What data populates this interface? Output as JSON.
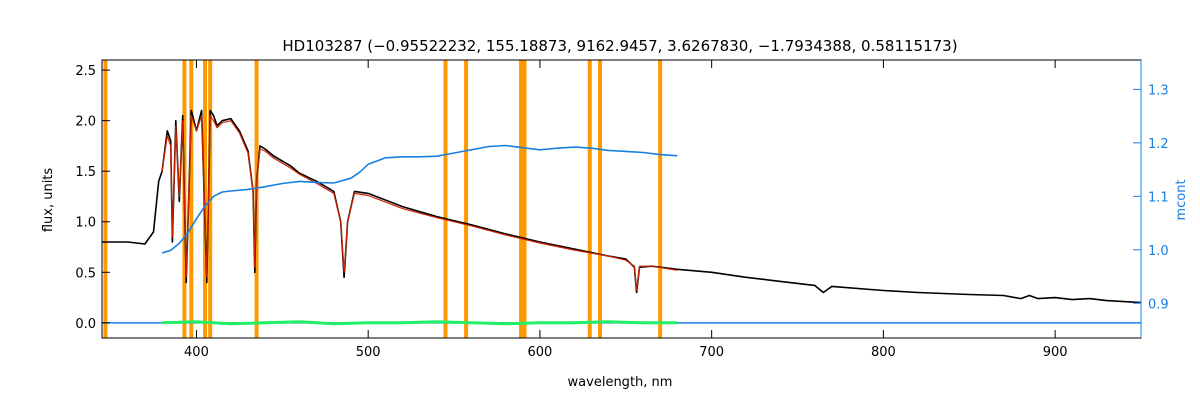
{
  "chart_data": {
    "type": "line",
    "title": "HD103287   (−0.95522232, 155.18873, 9162.9457, 3.6267830, −1.7934388, 0.58115173)",
    "xlabel": "wavelength, nm",
    "ylabel": "flux, units",
    "y2label": "mcont",
    "xlim": [
      345,
      950
    ],
    "ylim": [
      -0.15,
      2.6
    ],
    "y2lim": [
      0.835,
      1.355
    ],
    "x_ticks": [
      400,
      500,
      600,
      700,
      800,
      900
    ],
    "y_ticks": [
      0.0,
      0.5,
      1.0,
      1.5,
      2.0,
      2.5
    ],
    "y2_ticks": [
      0.9,
      1.0,
      1.1,
      1.2,
      1.3
    ],
    "x_tick_labels": [
      "400",
      "500",
      "600",
      "700",
      "800",
      "900"
    ],
    "y_tick_labels": [
      "0.0",
      "0.5",
      "1.0",
      "1.5",
      "2.0",
      "2.5"
    ],
    "y2_tick_labels": [
      "0.9",
      "1.0",
      "1.1",
      "1.2",
      "1.3"
    ],
    "grid": false,
    "colors": {
      "observed": "#000000",
      "model": "#cc2200",
      "continuum": "#1a80e0",
      "residual": "#22ee66",
      "masks": "#ff9900",
      "zero_line": "#1a80e0",
      "right_axis": "#1a80e0"
    },
    "series": [
      {
        "x": [
          345,
          360,
          370,
          375,
          378,
          380,
          383,
          385,
          386,
          388,
          390,
          392,
          394,
          397,
          400,
          403,
          406,
          408,
          410,
          412,
          415,
          420,
          425,
          430,
          433,
          434,
          435,
          437,
          440,
          445,
          450,
          455,
          460,
          470,
          480,
          484,
          486,
          488,
          492,
          500,
          520,
          540,
          560,
          580,
          600,
          620,
          640,
          650,
          655,
          656.3,
          658,
          665,
          680,
          700,
          720,
          740,
          760,
          765,
          770,
          800,
          820,
          850,
          870,
          880,
          885,
          890,
          900,
          910,
          920,
          930,
          940,
          950
        ],
        "y": [
          0.8,
          0.8,
          0.78,
          0.9,
          1.4,
          1.5,
          1.9,
          1.8,
          0.8,
          2.0,
          1.2,
          2.05,
          0.4,
          2.1,
          1.9,
          2.1,
          0.4,
          2.1,
          2.05,
          1.95,
          2.0,
          2.02,
          1.9,
          1.7,
          1.3,
          0.5,
          1.4,
          1.75,
          1.72,
          1.65,
          1.6,
          1.55,
          1.48,
          1.4,
          1.3,
          1.0,
          0.45,
          1.0,
          1.3,
          1.28,
          1.15,
          1.05,
          0.97,
          0.88,
          0.8,
          0.73,
          0.66,
          0.63,
          0.55,
          0.3,
          0.55,
          0.56,
          0.53,
          0.5,
          0.45,
          0.41,
          0.37,
          0.3,
          0.36,
          0.32,
          0.3,
          0.28,
          0.27,
          0.24,
          0.27,
          0.24,
          0.25,
          0.23,
          0.24,
          0.22,
          0.21,
          0.2
        ]
      },
      {
        "x": [
          380,
          383,
          385,
          386,
          388,
          390,
          392,
          394,
          397,
          400,
          403,
          406,
          408,
          410,
          412,
          415,
          420,
          425,
          430,
          433,
          434,
          435,
          437,
          440,
          445,
          450,
          455,
          460,
          470,
          480,
          484,
          486,
          488,
          492,
          500,
          520,
          540,
          560,
          580,
          600,
          620,
          640,
          650,
          655,
          656.3,
          658,
          665,
          680
        ],
        "y": [
          1.5,
          1.85,
          1.75,
          0.85,
          1.95,
          1.25,
          2.0,
          0.45,
          2.05,
          1.9,
          2.05,
          0.45,
          2.05,
          2.0,
          1.93,
          1.98,
          2.0,
          1.88,
          1.68,
          1.3,
          0.55,
          1.4,
          1.72,
          1.7,
          1.63,
          1.58,
          1.53,
          1.47,
          1.38,
          1.28,
          1.0,
          0.5,
          1.0,
          1.28,
          1.26,
          1.13,
          1.04,
          0.96,
          0.87,
          0.79,
          0.72,
          0.66,
          0.62,
          0.56,
          0.32,
          0.56,
          0.56,
          0.52
        ]
      },
      {
        "axis": "right",
        "x": [
          380,
          385,
          390,
          395,
          400,
          405,
          410,
          415,
          420,
          430,
          440,
          450,
          460,
          470,
          480,
          490,
          495,
          500,
          510,
          520,
          530,
          540,
          550,
          560,
          570,
          580,
          590,
          600,
          610,
          620,
          630,
          640,
          650,
          660,
          670,
          680
        ],
        "y": [
          0.994,
          0.999,
          1.012,
          1.032,
          1.058,
          1.082,
          1.1,
          1.108,
          1.11,
          1.113,
          1.118,
          1.124,
          1.128,
          1.126,
          1.125,
          1.134,
          1.145,
          1.16,
          1.172,
          1.174,
          1.174,
          1.175,
          1.181,
          1.187,
          1.193,
          1.195,
          1.191,
          1.187,
          1.19,
          1.192,
          1.19,
          1.186,
          1.184,
          1.182,
          1.178,
          1.176
        ]
      },
      {
        "x": [
          380,
          400,
          420,
          440,
          460,
          480,
          500,
          520,
          540,
          560,
          580,
          600,
          620,
          640,
          660,
          680
        ],
        "y": [
          0.0,
          0.01,
          -0.01,
          0.0,
          0.01,
          -0.01,
          0.0,
          0.0,
          0.01,
          0.0,
          -0.01,
          0.0,
          0.0,
          0.01,
          0.0,
          0.0
        ]
      }
    ],
    "mask_lines": [
      347,
      393,
      397,
      405,
      408,
      435,
      545,
      557,
      589,
      591,
      629,
      635,
      670
    ]
  }
}
